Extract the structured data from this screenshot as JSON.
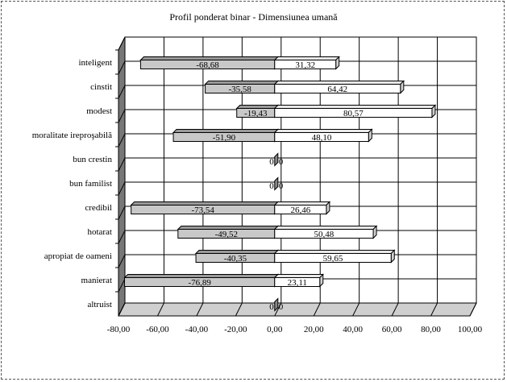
{
  "chart_data": {
    "type": "bar",
    "orientation": "horizontal",
    "stacked": "diverging",
    "title": "Profil ponderat binar - Dimensiunea umană",
    "xlabel": "",
    "ylabel": "",
    "xlim": [
      -80,
      100
    ],
    "x_ticks": [
      "-80,00",
      "-60,00",
      "-40,00",
      "-20,00",
      "0,00",
      "20,00",
      "40,00",
      "60,00",
      "80,00",
      "100,00"
    ],
    "grid": true,
    "categories": [
      "inteligent",
      "cinstit",
      "modest",
      "moralitate ireproşabilă",
      "bun crestin",
      "bun familist",
      "credibil",
      "hotarat",
      "apropiat de oameni",
      "manierat",
      "altruist"
    ],
    "series": [
      {
        "values": [
          -68.68,
          -35.58,
          -19.43,
          -51.9,
          0,
          0,
          -73.54,
          -49.52,
          -40.35,
          -76.89,
          0
        ],
        "labels": [
          "-68,68",
          "-35,58",
          "-19,43",
          "-51,90",
          "0",
          "0",
          "-73,54",
          "-49,52",
          "-40,35",
          "-76,89",
          "0"
        ],
        "color": "#c8c8c8"
      },
      {
        "values": [
          31.32,
          64.42,
          80.57,
          48.1,
          0,
          0,
          26.46,
          50.48,
          59.65,
          23.11,
          0
        ],
        "labels": [
          "31,32",
          "64,42",
          "80,57",
          "48,10",
          "0",
          "0",
          "26,46",
          "50,48",
          "59,65",
          "23,11",
          "0"
        ],
        "color": "#ffffff"
      }
    ]
  }
}
